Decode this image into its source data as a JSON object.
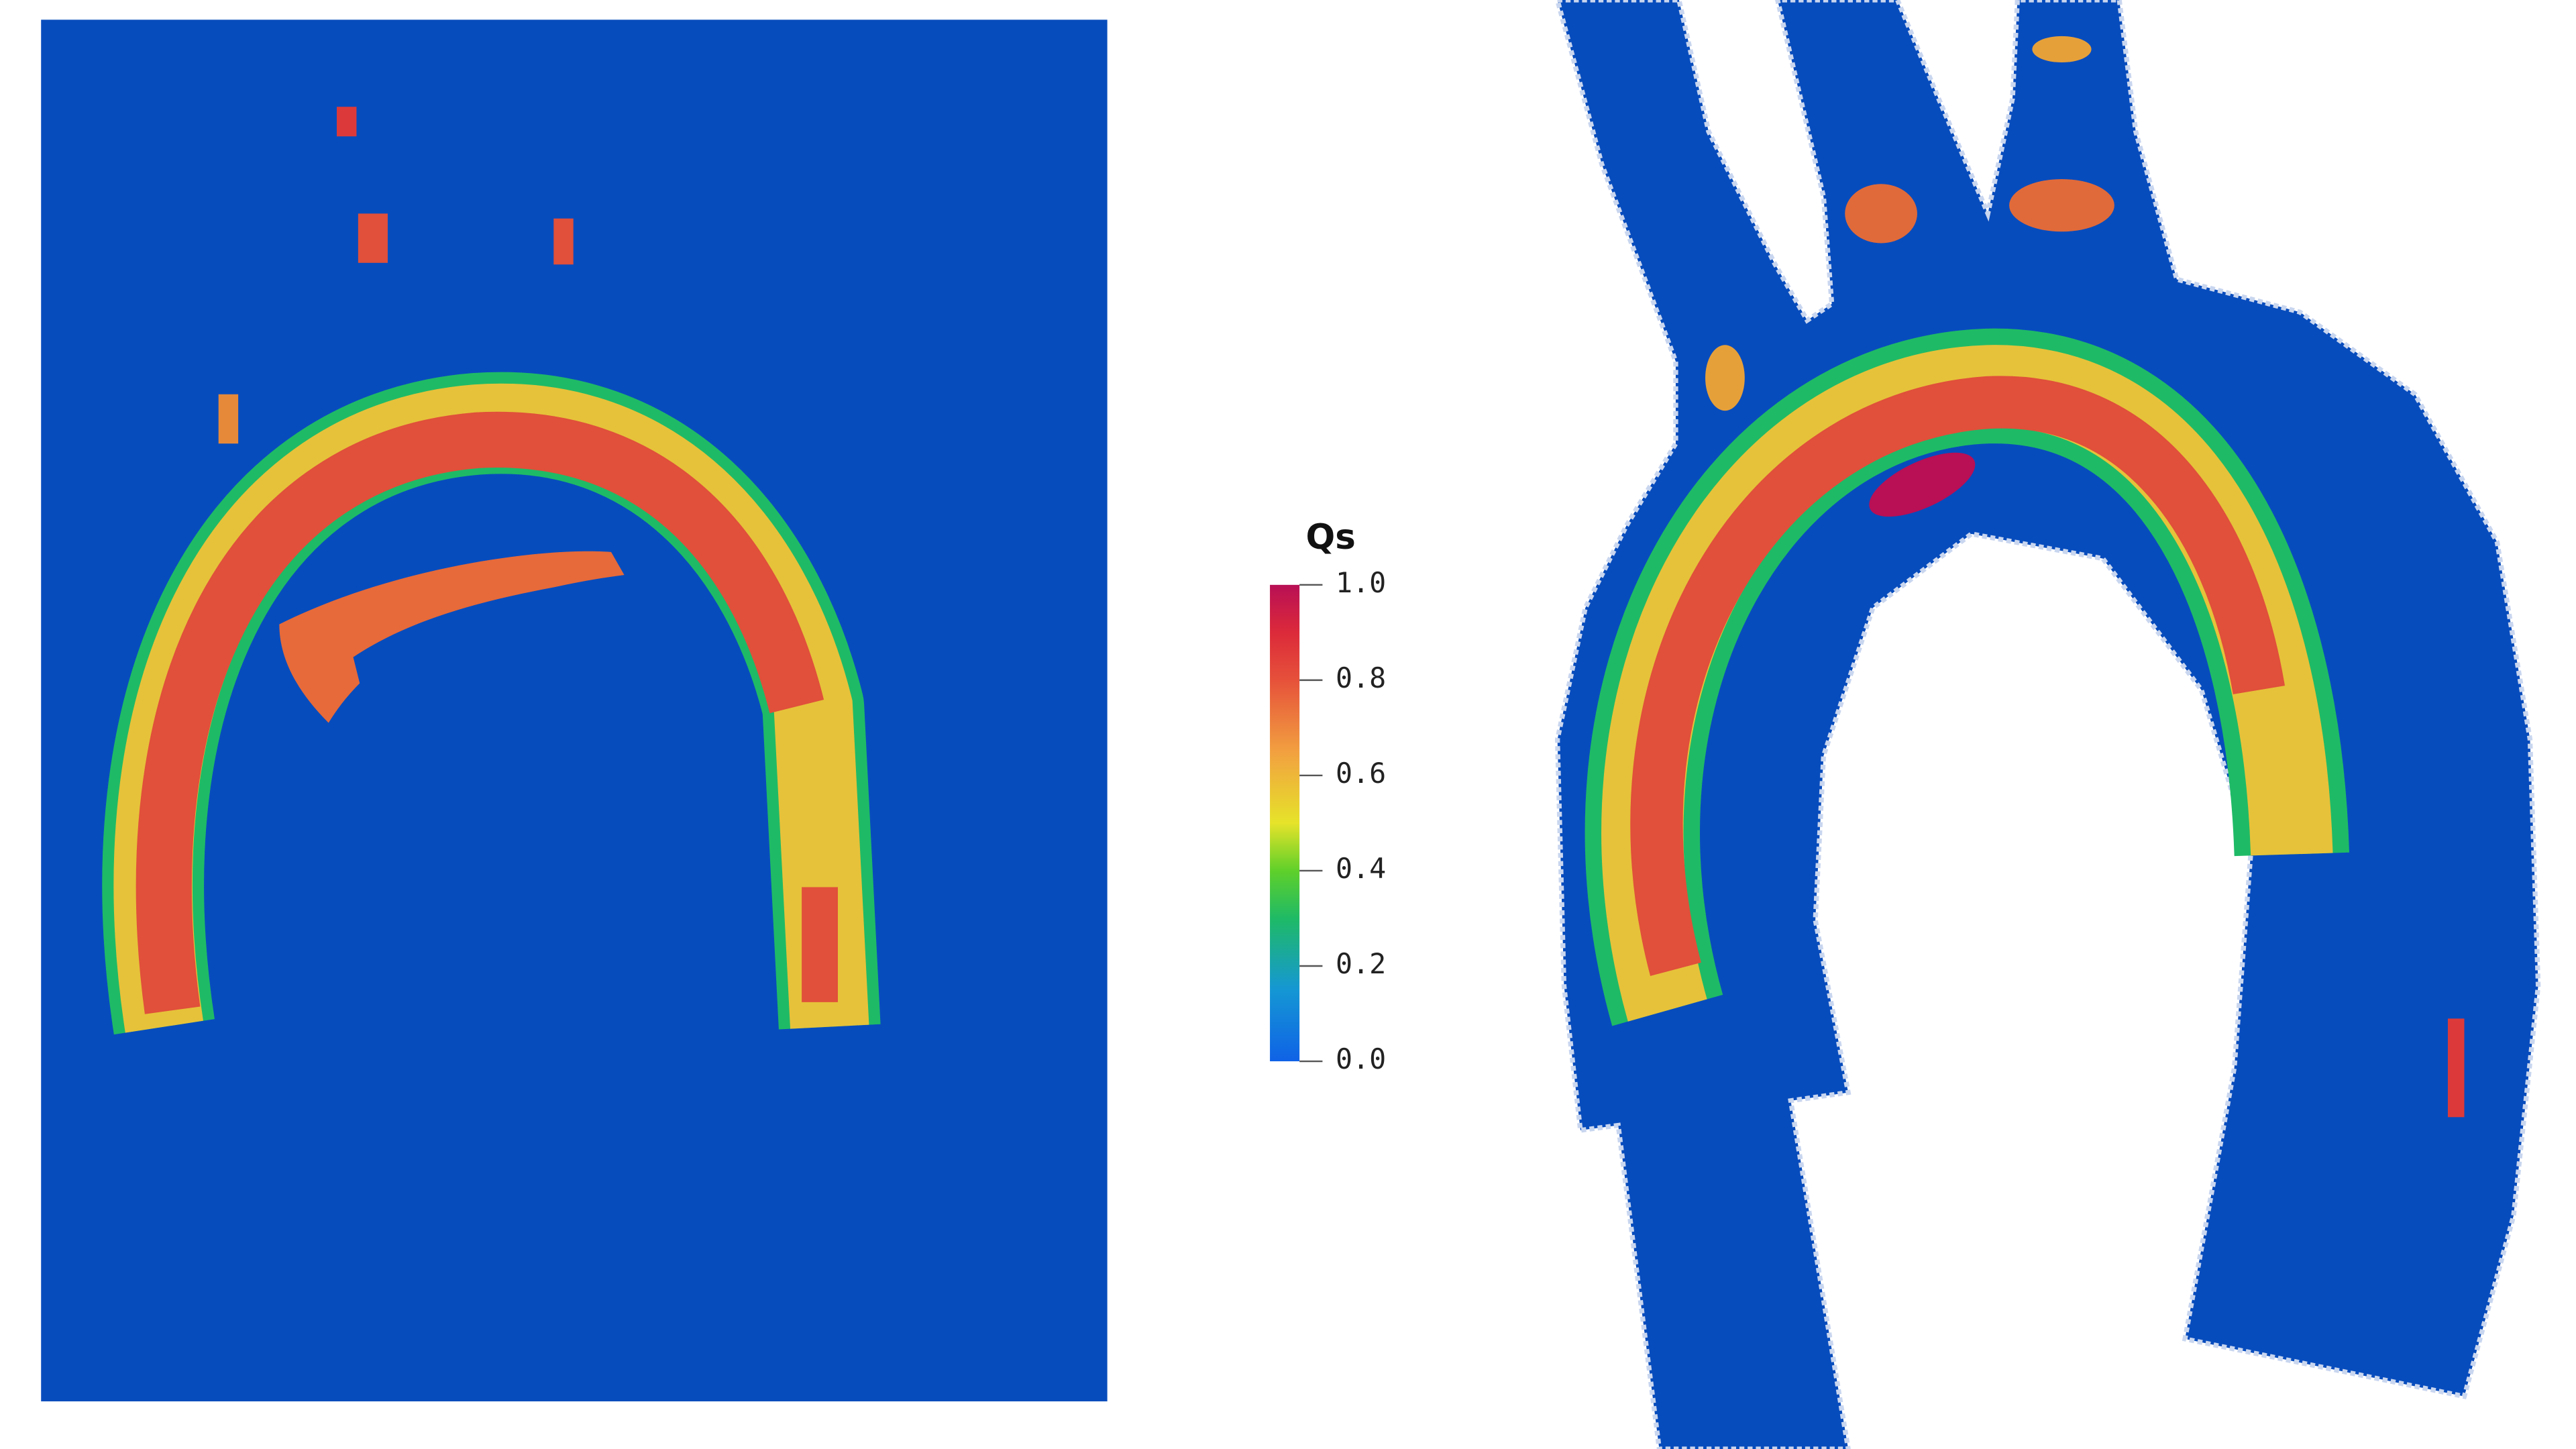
{
  "colorbar": {
    "title": "Qs",
    "range": [
      0,
      1
    ],
    "ticks": [
      {
        "value": 1,
        "label": "1.0"
      },
      {
        "value": 0.8,
        "label": "0.8"
      },
      {
        "value": 0.6,
        "label": "0.6"
      },
      {
        "value": 0.4,
        "label": "0.4"
      },
      {
        "value": 0.2,
        "label": "0.2"
      },
      {
        "value": 0,
        "label": "0.0"
      }
    ]
  }
}
